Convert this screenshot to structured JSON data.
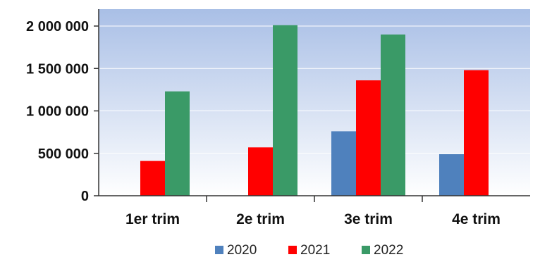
{
  "chart_data": {
    "type": "bar",
    "categories": [
      "1er trim",
      "2e trim",
      "3e trim",
      "4e trim"
    ],
    "series": [
      {
        "name": "2020",
        "values": [
          null,
          null,
          760000,
          490000
        ]
      },
      {
        "name": "2021",
        "values": [
          410000,
          570000,
          1360000,
          1480000
        ]
      },
      {
        "name": "2022",
        "values": [
          1230000,
          2010000,
          1900000,
          null
        ]
      }
    ],
    "ylim": [
      0,
      2000000
    ],
    "yticks": [
      0,
      500000,
      1000000,
      1500000,
      2000000
    ],
    "ytick_labels": [
      "0",
      "500 000",
      "1 000 000",
      "1 500 000",
      "2 000 000"
    ],
    "title": "",
    "xlabel": "",
    "ylabel": "",
    "grid": true,
    "legend_position": "bottom",
    "colors": {
      "2020": "#4f81bd",
      "2021": "#ff0000",
      "2022": "#3a9a67",
      "background_top": "#a9bfe6",
      "background_bottom": "#ffffff"
    }
  }
}
